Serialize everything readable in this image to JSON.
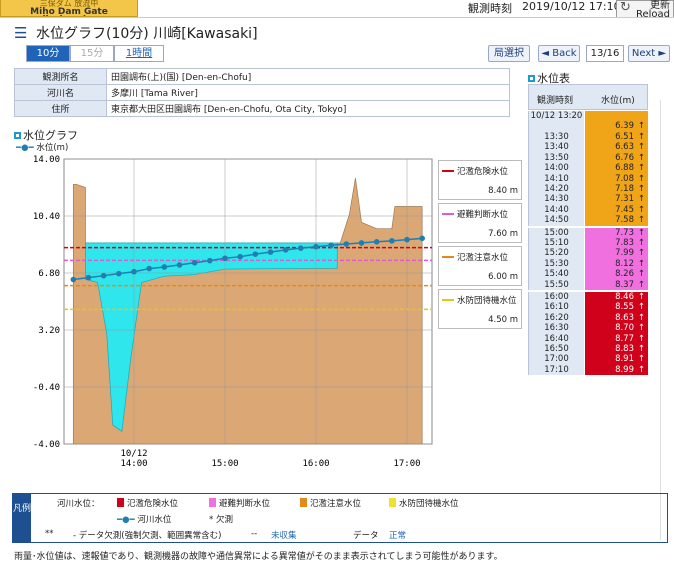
{
  "topbar": {
    "dam_jp": "三保ダム 放流中",
    "dam_en": "Miho Dam Gate discharging",
    "obs_label": "観測時刻",
    "obs_time": "2019/10/12 17:10",
    "reload_jp": "更新",
    "reload_en": "Reload"
  },
  "header": {
    "title": "水位グラフ(10分) 川崎[Kawasaki]"
  },
  "tabs": [
    {
      "label": "10分"
    },
    {
      "label": "15分"
    },
    {
      "label": "1時間"
    }
  ],
  "nav": {
    "station_select": "局選択",
    "back": "◄ Back",
    "page": "13/16",
    "next": "Next ►"
  },
  "info": {
    "rows": [
      {
        "key": "観測所名",
        "val": "田園調布(上)(国) [Den-en-Chofu]"
      },
      {
        "key": "河川名",
        "val": "多摩川 [Tama River]"
      },
      {
        "key": "住所",
        "val": "東京都大田区田園調布 [Den-en-Chofu, Ota City, Tokyo]"
      }
    ]
  },
  "graph": {
    "title": "水位グラフ",
    "series_label": "水位(m)"
  },
  "thresholds": [
    {
      "name": "氾濫危険水位",
      "value": "8.40 m",
      "color": "#d0021b"
    },
    {
      "name": "避難判断水位",
      "value": "7.60 m",
      "color": "#e05ad0"
    },
    {
      "name": "氾濫注意水位",
      "value": "6.00 m",
      "color": "#e48a1a"
    },
    {
      "name": "水防団待機水位",
      "value": "4.50 m",
      "color": "#e0c81a"
    }
  ],
  "chart_data": {
    "type": "line",
    "title": "水位グラフ",
    "ylabel": "水位(m)",
    "ylim": [
      -4.0,
      14.0
    ],
    "yticks": [
      "14.00",
      "10.40",
      "6.80",
      "3.20",
      "-0.40",
      "-4.00"
    ],
    "xticks": [
      "10/12\n14:00",
      "15:00",
      "16:00",
      "17:00"
    ],
    "series": [
      {
        "name": "水位(m)",
        "x": [
          "13:20",
          "13:30",
          "13:40",
          "13:50",
          "14:00",
          "14:10",
          "14:20",
          "14:30",
          "14:40",
          "14:50",
          "15:00",
          "15:10",
          "15:20",
          "15:30",
          "15:40",
          "15:50",
          "16:00",
          "16:10",
          "16:20",
          "16:30",
          "16:40",
          "16:50",
          "17:00",
          "17:10"
        ],
        "values": [
          6.39,
          6.51,
          6.63,
          6.76,
          6.88,
          7.08,
          7.18,
          7.31,
          7.45,
          7.58,
          7.73,
          7.83,
          7.99,
          8.12,
          8.26,
          8.37,
          8.46,
          8.55,
          8.63,
          8.7,
          8.77,
          8.83,
          8.91,
          8.99
        ]
      }
    ]
  },
  "level_table": {
    "title": "水位表",
    "head_time": "観測時刻",
    "head_val": "水位(m)",
    "rows": [
      {
        "time": "10/12 13:20",
        "val": "6.39",
        "c": "#f0a418"
      },
      {
        "time": "13:30",
        "val": "6.51",
        "c": "#f0a418"
      },
      {
        "time": "13:40",
        "val": "6.63",
        "c": "#f0a418"
      },
      {
        "time": "13:50",
        "val": "6.76",
        "c": "#f0a418"
      },
      {
        "time": "14:00",
        "val": "6.88",
        "c": "#f0a418"
      },
      {
        "time": "14:10",
        "val": "7.08",
        "c": "#f0a418"
      },
      {
        "time": "14:20",
        "val": "7.18",
        "c": "#f0a418"
      },
      {
        "time": "14:30",
        "val": "7.31",
        "c": "#f0a418"
      },
      {
        "time": "14:40",
        "val": "7.45",
        "c": "#f0a418"
      },
      {
        "time": "14:50",
        "val": "7.58",
        "c": "#f0a418"
      },
      {
        "time": "15:00",
        "val": "7.73",
        "c": "#f070e0"
      },
      {
        "time": "15:10",
        "val": "7.83",
        "c": "#f070e0"
      },
      {
        "time": "15:20",
        "val": "7.99",
        "c": "#f070e0"
      },
      {
        "time": "15:30",
        "val": "8.12",
        "c": "#f070e0"
      },
      {
        "time": "15:40",
        "val": "8.26",
        "c": "#f070e0"
      },
      {
        "time": "15:50",
        "val": "8.37",
        "c": "#f070e0"
      },
      {
        "time": "16:00",
        "val": "8.46",
        "c": "#d0021b"
      },
      {
        "time": "16:10",
        "val": "8.55",
        "c": "#d0021b"
      },
      {
        "time": "16:20",
        "val": "8.63",
        "c": "#d0021b"
      },
      {
        "time": "16:30",
        "val": "8.70",
        "c": "#d0021b"
      },
      {
        "time": "16:40",
        "val": "8.77",
        "c": "#d0021b"
      },
      {
        "time": "16:50",
        "val": "8.83",
        "c": "#d0021b"
      },
      {
        "time": "17:00",
        "val": "8.91",
        "c": "#d0021b"
      },
      {
        "time": "17:10",
        "val": "8.99",
        "c": "#d0021b"
      }
    ],
    "arrow": "↑"
  },
  "legend": {
    "side": "凡例",
    "river_level": "河川水位：",
    "items": [
      {
        "label": "氾濫危険水位",
        "color": "#d0021b"
      },
      {
        "label": "避難判断水位",
        "color": "#f070e0"
      },
      {
        "label": "氾濫注意水位",
        "color": "#e48a1a"
      },
      {
        "label": "水防団待機水位",
        "color": "#f0e030"
      }
    ],
    "series": "河川水位",
    "missing_mark": "*",
    "missing": "欠測",
    "stars": "**",
    "dash1": "- データ欠測(強制欠測、範囲異常含む)",
    "dash2": "--",
    "uncollected": "未収集",
    "data": "データ",
    "normal": "正常"
  },
  "footer": "雨量･水位値は、速報値であり、観測機器の故障や通信異常による異常値がそのまま表示されてしまう可能性があります。"
}
